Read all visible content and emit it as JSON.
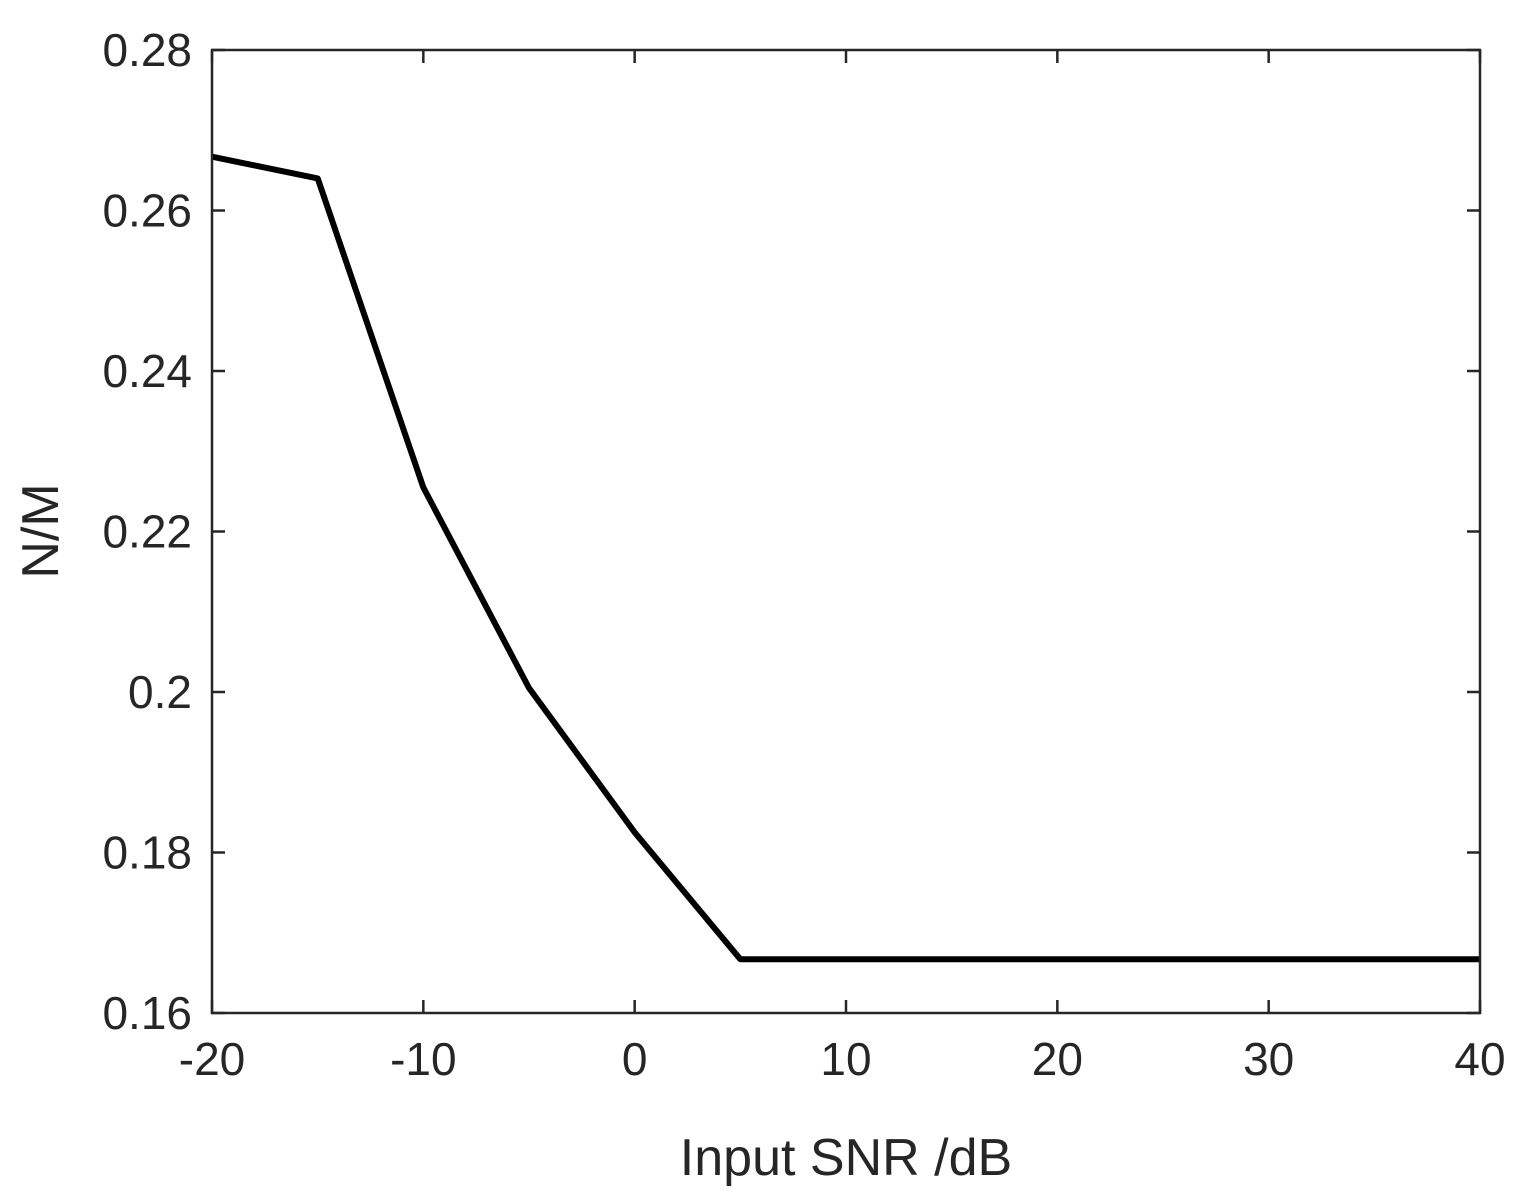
{
  "chart_data": {
    "type": "line",
    "title": "",
    "xlabel": "Input SNR /dB",
    "ylabel": "N/M",
    "xlim": [
      -20,
      40
    ],
    "ylim": [
      0.16,
      0.28
    ],
    "xticks": [
      -20,
      -10,
      0,
      10,
      20,
      30,
      40
    ],
    "yticks": [
      0.16,
      0.18,
      0.2,
      0.22,
      0.24,
      0.26,
      0.28
    ],
    "xtick_labels": [
      "-20",
      "-10",
      "0",
      "10",
      "20",
      "30",
      "40"
    ],
    "ytick_labels": [
      "0.16",
      "0.18",
      "0.2",
      "0.22",
      "0.24",
      "0.26",
      "0.28"
    ],
    "grid": false,
    "legend": "none",
    "series": [
      {
        "color": "#000000",
        "x": [
          -20,
          -15,
          -10,
          -5,
          0,
          5,
          10,
          15,
          20,
          25,
          30,
          35,
          40
        ],
        "y": [
          0.2667,
          0.264,
          0.2255,
          0.2005,
          0.1825,
          0.1667,
          0.1667,
          0.1667,
          0.1667,
          0.1667,
          0.1667,
          0.1667,
          0.1667
        ]
      }
    ]
  }
}
